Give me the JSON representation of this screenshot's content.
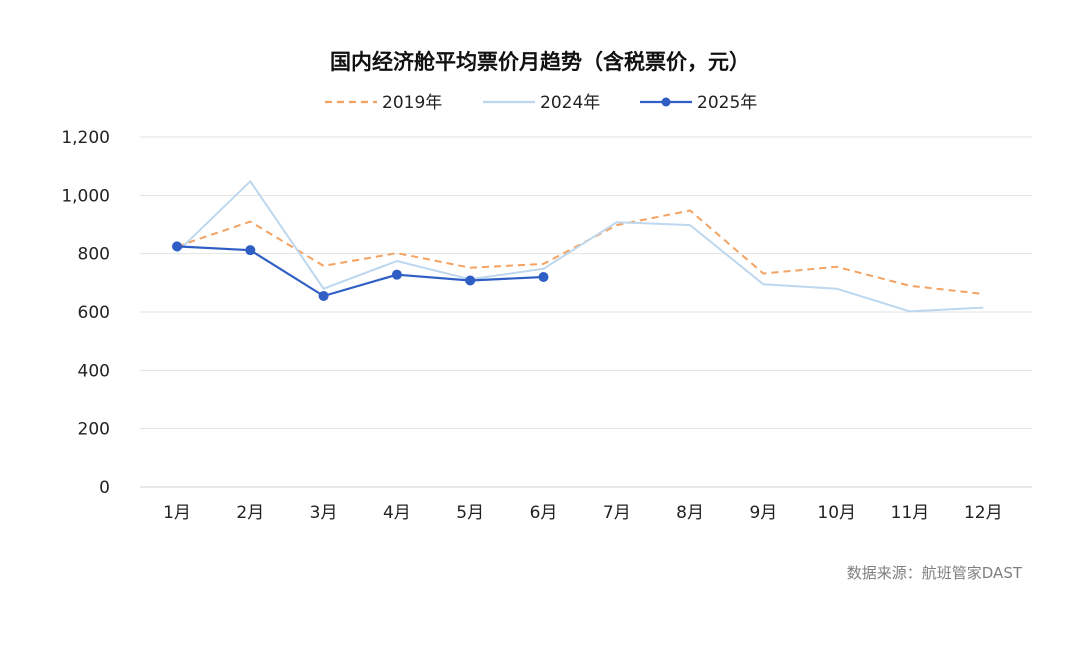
{
  "chart_data": {
    "type": "line",
    "title": "国内经济舱平均票价月趋势（含税票价，元）",
    "source": "数据来源：航班管家DAST",
    "categories": [
      "1月",
      "2月",
      "3月",
      "4月",
      "5月",
      "6月",
      "7月",
      "8月",
      "9月",
      "10月",
      "11月",
      "12月"
    ],
    "ylim": [
      0,
      1200
    ],
    "yticks": [
      0,
      200,
      400,
      600,
      800,
      1000,
      1200
    ],
    "ytick_labels": [
      "0",
      "200",
      "400",
      "600",
      "800",
      "1,000",
      "1,200"
    ],
    "grid": true,
    "legend_position": "top-center",
    "series": [
      {
        "name": "2019年",
        "color": "#F4A261",
        "style": "dashed",
        "markers": false,
        "values": [
          825,
          910,
          758,
          802,
          752,
          765,
          898,
          948,
          732,
          755,
          690,
          662
        ]
      },
      {
        "name": "2024年",
        "color": "#BDD7EE",
        "style": "solid",
        "markers": false,
        "values": [
          805,
          1048,
          680,
          775,
          712,
          748,
          908,
          898,
          695,
          680,
          602,
          615
        ]
      },
      {
        "name": "2025年",
        "color": "#2F5FC4",
        "style": "solid",
        "markers": true,
        "values": [
          825,
          812,
          655,
          728,
          708,
          720,
          null,
          null,
          null,
          null,
          null,
          null
        ]
      }
    ]
  }
}
